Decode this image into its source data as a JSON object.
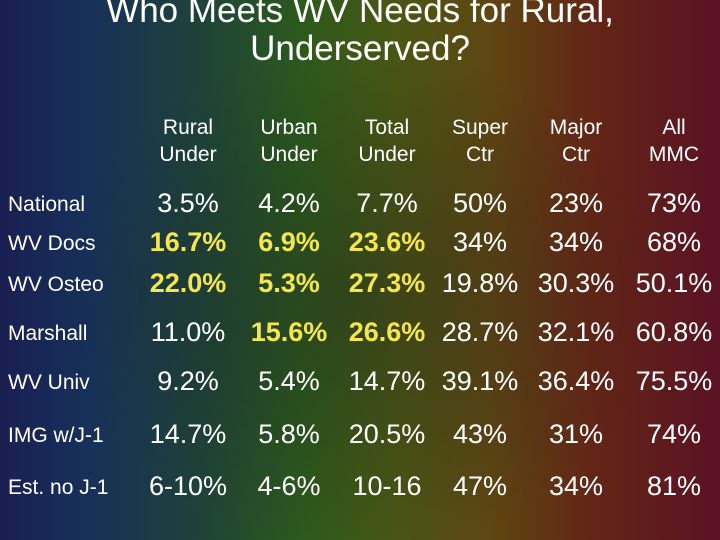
{
  "title": {
    "line1": "Who Meets WV Needs for Rural,",
    "line2": "Underserved?"
  },
  "columns": [
    "Rural\nUnder",
    "Urban\nUnder",
    "Total\nUnder",
    "Super\nCtr",
    "Major\nCtr",
    "All\nMMC"
  ],
  "rows": [
    {
      "label": "National",
      "values": [
        "3.5%",
        "4.2%",
        "7.7%",
        "50%",
        "23%",
        "73%"
      ],
      "highlight": [
        false,
        false,
        false,
        false,
        false,
        false
      ]
    },
    {
      "label": "WV Docs",
      "values": [
        "16.7%",
        "6.9%",
        "23.6%",
        "34%",
        "34%",
        "68%"
      ],
      "highlight": [
        true,
        true,
        true,
        false,
        false,
        false
      ]
    },
    {
      "label": "WV Osteo",
      "values": [
        "22.0%",
        "5.3%",
        "27.3%",
        "19.8%",
        "30.3%",
        "50.1%"
      ],
      "highlight": [
        true,
        true,
        true,
        false,
        false,
        false
      ]
    },
    {
      "label": "Marshall",
      "values": [
        "11.0%",
        "15.6%",
        "26.6%",
        "28.7%",
        "32.1%",
        "60.8%"
      ],
      "highlight": [
        false,
        true,
        true,
        false,
        false,
        false
      ]
    },
    {
      "label": "WV Univ",
      "values": [
        "9.2%",
        "5.4%",
        "14.7%",
        "39.1%",
        "36.4%",
        "75.5%"
      ],
      "highlight": [
        false,
        false,
        false,
        false,
        false,
        false
      ]
    },
    {
      "label": "IMG w/J-1",
      "values": [
        "14.7%",
        "5.8%",
        "20.5%",
        "43%",
        "31%",
        "74%"
      ],
      "highlight": [
        false,
        false,
        false,
        false,
        false,
        false
      ]
    },
    {
      "label": "Est. no J-1",
      "values": [
        "6-10%",
        "4-6%",
        "10-16",
        "47%",
        "34%",
        "81%"
      ],
      "highlight": [
        false,
        false,
        false,
        false,
        false,
        false
      ]
    }
  ],
  "colors": {
    "text": "#ffffff",
    "highlight": "#f5e64a"
  }
}
